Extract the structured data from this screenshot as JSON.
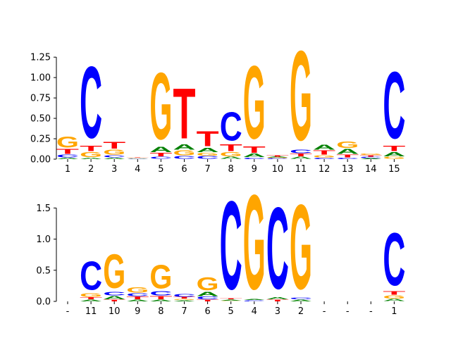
{
  "colors": {
    "A": "#008000",
    "C": "#0000ff",
    "G": "#ffa500",
    "T": "#ff0000"
  },
  "chart_data": [
    {
      "type": "sequence-logo",
      "ylim": [
        0,
        1.45
      ],
      "yticks": [
        "0.00",
        "0.25",
        "0.50",
        "0.75",
        "1.00",
        "1.25"
      ],
      "ytick_values": [
        0,
        0.25,
        0.5,
        0.75,
        1.0,
        1.25
      ],
      "xtick_labels": [
        "1",
        "2",
        "3",
        "4",
        "5",
        "6",
        "7",
        "8",
        "9",
        "10",
        "11",
        "12",
        "13",
        "14",
        "15"
      ],
      "positions": [
        {
          "A": 0.02,
          "C": 0.04,
          "T": 0.07,
          "G": 0.16
        },
        {
          "A": 0.02,
          "G": 0.07,
          "T": 0.08,
          "C": 1.04
        },
        {
          "A": 0.02,
          "C": 0.03,
          "G": 0.07,
          "T": 0.1
        },
        {
          "A": 0.005,
          "C": 0.005,
          "G": 0.005,
          "T": 0.005
        },
        {
          "C": 0.03,
          "T": 0.05,
          "A": 0.08,
          "G": 0.97
        },
        {
          "C": 0.04,
          "A": 0.08,
          "G": 0.07,
          "T": 0.73
        },
        {
          "C": 0.04,
          "G": 0.04,
          "A": 0.06,
          "T": 0.22
        },
        {
          "A": 0.03,
          "G": 0.06,
          "T": 0.1,
          "C": 0.41
        },
        {
          "C": 0.02,
          "A": 0.05,
          "T": 0.09,
          "G": 1.06
        },
        {
          "C": 0.01,
          "G": 0.01,
          "A": 0.01,
          "T": 0.02
        },
        {
          "A": 0.03,
          "T": 0.04,
          "C": 0.05,
          "G": 1.3
        },
        {
          "C": 0.02,
          "G": 0.03,
          "A": 0.07,
          "T": 0.06
        },
        {
          "C": 0.02,
          "T": 0.04,
          "A": 0.07,
          "G": 0.09
        },
        {
          "A": 0.01,
          "C": 0.02,
          "T": 0.02,
          "G": 0.02
        },
        {
          "G": 0.03,
          "A": 0.06,
          "T": 0.08,
          "C": 0.97
        }
      ]
    },
    {
      "type": "sequence-logo",
      "ylim": [
        0,
        1.9
      ],
      "yticks": [
        "0.0",
        "0.5",
        "1.0",
        "1.5"
      ],
      "ytick_values": [
        0,
        0.5,
        1.0,
        1.5
      ],
      "xtick_labels": [
        "-",
        "11",
        "10",
        "9",
        "8",
        "7",
        "6",
        "5",
        "4",
        "3",
        "2",
        "-",
        "-",
        "-",
        "1"
      ],
      "positions": [
        {},
        {
          "A": 0.03,
          "T": 0.04,
          "G": 0.07,
          "C": 0.54
        },
        {
          "T": 0.03,
          "A": 0.06,
          "C": 0.07,
          "G": 0.64
        },
        {
          "A": 0.03,
          "T": 0.05,
          "C": 0.05,
          "G": 0.1
        },
        {
          "A": 0.03,
          "T": 0.06,
          "C": 0.08,
          "G": 0.45
        },
        {
          "A": 0.02,
          "G": 0.02,
          "T": 0.03,
          "C": 0.05
        },
        {
          "T": 0.03,
          "C": 0.05,
          "A": 0.08,
          "G": 0.24
        },
        {
          "A": 0.02,
          "G": 0.01,
          "T": 0.02,
          "C": 1.68
        },
        {
          "C": 0.02,
          "A": 0.02,
          "G": 1.8
        },
        {
          "A": 0.04,
          "T": 0.03,
          "C": 1.55
        },
        {
          "A": 0.03,
          "C": 0.03,
          "G": 1.61
        },
        {},
        {},
        {},
        {
          "A": 0.04,
          "T": 0.07,
          "G": 0.06,
          "C": 1.0
        }
      ]
    }
  ]
}
